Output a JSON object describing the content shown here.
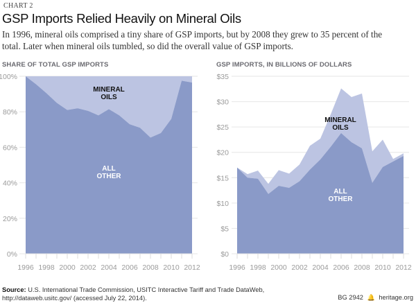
{
  "header": {
    "chart_label": "CHART 2",
    "title": "GSP Imports Relied Heavily on Mineral Oils",
    "subtitle": "In 1996, mineral oils comprised a tiny share of GSP imports, but by 2008 they grew to 35 percent of the total. Later when mineral oils tumbled, so did the overall value of GSP imports."
  },
  "colors": {
    "all_other": "#8a9ac8",
    "mineral_oils": "#bcc4e2",
    "grid": "#e6e6e6",
    "axis_text": "#9a9a9a"
  },
  "chart_data": [
    {
      "type": "area",
      "stacked": true,
      "title": "SHARE OF TOTAL GSP IMPORTS",
      "xlabel": "",
      "ylabel": "",
      "x": [
        1996,
        1997,
        1998,
        1999,
        2000,
        2001,
        2002,
        2003,
        2004,
        2005,
        2006,
        2007,
        2008,
        2009,
        2010,
        2011,
        2012
      ],
      "x_tick_labels": [
        "1996",
        "1998",
        "2000",
        "2002",
        "2004",
        "2006",
        "2008",
        "2010",
        "2012"
      ],
      "y_tick_labels": [
        "0%",
        "20%",
        "40%",
        "60%",
        "80%",
        "100%"
      ],
      "y_ticks": [
        0,
        20,
        40,
        60,
        80,
        100
      ],
      "ylim": [
        0,
        100
      ],
      "grid": true,
      "series": [
        {
          "name": "ALL OTHER",
          "label_lines": [
            "ALL",
            "OTHER"
          ],
          "values": [
            100,
            95.5,
            90.5,
            85,
            81,
            82,
            80.5,
            78,
            81.5,
            78,
            73,
            71,
            65.5,
            68,
            76,
            97.5,
            96.5
          ]
        },
        {
          "name": "MINERAL OILS",
          "label_lines": [
            "MINERAL",
            "OILS"
          ],
          "values": [
            0,
            4.5,
            9.5,
            15,
            19,
            18,
            19.5,
            22,
            18.5,
            22,
            27,
            29,
            34.5,
            32,
            24,
            2.5,
            3.5
          ]
        }
      ]
    },
    {
      "type": "area",
      "stacked": true,
      "title": "GSP IMPORTS, IN BILLIONS OF DOLLARS",
      "xlabel": "",
      "ylabel": "",
      "x": [
        1996,
        1997,
        1998,
        1999,
        2000,
        2001,
        2002,
        2003,
        2004,
        2005,
        2006,
        2007,
        2008,
        2009,
        2010,
        2011,
        2012
      ],
      "x_tick_labels": [
        "1996",
        "1998",
        "2000",
        "2002",
        "2004",
        "2006",
        "2008",
        "2010",
        "2012"
      ],
      "y_tick_labels": [
        "$0",
        "$5",
        "$10",
        "$15",
        "$20",
        "$25",
        "$30",
        "$35"
      ],
      "y_ticks": [
        0,
        5,
        10,
        15,
        20,
        25,
        30,
        35
      ],
      "ylim": [
        0,
        35
      ],
      "grid": true,
      "series": [
        {
          "name": "ALL OTHER",
          "label_lines": [
            "ALL",
            "OTHER"
          ],
          "values": [
            17.0,
            15.0,
            14.8,
            11.8,
            13.4,
            13.0,
            14.3,
            16.6,
            18.6,
            21.1,
            23.8,
            22.0,
            20.8,
            14.0,
            17.1,
            18.2,
            19.3
          ]
        },
        {
          "name": "MINERAL OILS",
          "label_lines": [
            "MINERAL",
            "OILS"
          ],
          "values": [
            0,
            0.7,
            1.6,
            2.0,
            3.1,
            2.8,
            3.3,
            4.7,
            4.1,
            6.4,
            8.8,
            8.9,
            10.8,
            6.2,
            5.4,
            0.5,
            0.5
          ]
        }
      ]
    }
  ],
  "footer": {
    "source_label": "Source:",
    "source_text": " U.S. International Trade Commission, USITC Interactive Tariff and Trade DataWeb,",
    "source_line2": "http://dataweb.usitc.gov/ (accessed July 22, 2014).",
    "report_id": "BG 2942",
    "logo_icon": "liberty-bell-icon",
    "site": "heritage.org"
  }
}
